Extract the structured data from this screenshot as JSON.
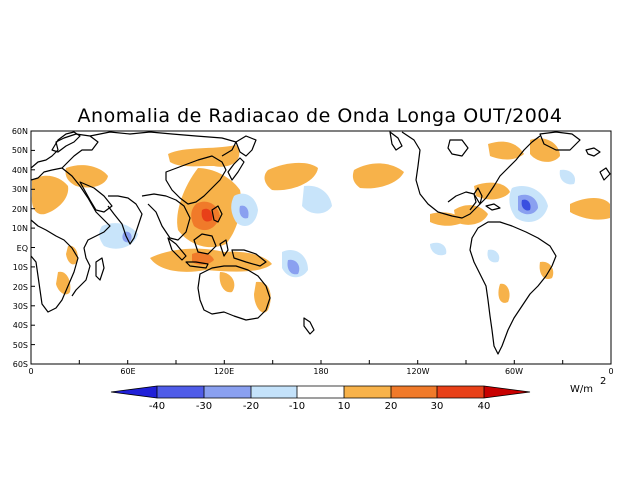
{
  "title": "Anomalia de Radiacao de Onda Longa OUT/2004",
  "lat_labels": [
    "60N",
    "50N",
    "40N",
    "30N",
    "20N",
    "10N",
    "EQ",
    "10S",
    "20S",
    "30S",
    "40S",
    "50S",
    "60S"
  ],
  "lon_labels": [
    "0",
    "60E",
    "120E",
    "180",
    "120W",
    "60W",
    "0"
  ],
  "units": {
    "base": "W/m",
    "exponent": "2"
  },
  "colorbar": {
    "ticks": [
      "-40",
      "-30",
      "-20",
      "-10",
      "10",
      "20",
      "30",
      "40"
    ],
    "colors": [
      "#2020d8",
      "#4f5ce8",
      "#8aa0f0",
      "#c4e2fa",
      "#ffffff",
      "#f7b24a",
      "#f07a2a",
      "#e84018",
      "#c80000"
    ]
  },
  "anomaly_color_scale": {
    "neg_strong": "#3a4fe0",
    "neg_mid": "#8aa0f0",
    "neg_light": "#c8e4fa",
    "pos_light": "#f7b24a",
    "pos_mid": "#f07a2a",
    "pos_strong": "#e84018"
  }
}
